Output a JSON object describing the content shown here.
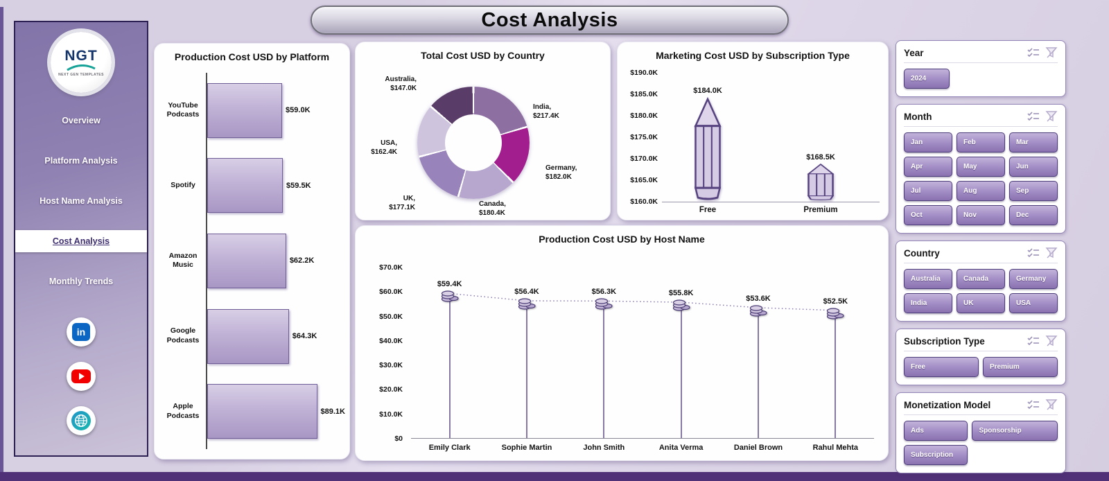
{
  "app": {
    "title": "Cost Analysis"
  },
  "sidebar": {
    "logo": {
      "text": "NGT",
      "subtext": "NEXT GEN TEMPLATES"
    },
    "items": [
      {
        "label": "Overview",
        "active": false
      },
      {
        "label": "Platform Analysis",
        "active": false
      },
      {
        "label": "Host Name Analysis",
        "active": false
      },
      {
        "label": "Cost Analysis",
        "active": true
      },
      {
        "label": "Monthly Trends",
        "active": false
      }
    ],
    "social": [
      {
        "name": "linkedin",
        "glyph": "in"
      },
      {
        "name": "youtube"
      },
      {
        "name": "website"
      }
    ]
  },
  "chart_data": [
    {
      "type": "bar",
      "orientation": "horizontal",
      "title": "Production Cost USD by Platform",
      "categories": [
        "YouTube Podcasts",
        "Spotify",
        "Amazon Music",
        "Google Podcasts",
        "Apple Podcasts"
      ],
      "values": [
        59.0,
        59.5,
        62.2,
        64.3,
        89.1
      ],
      "value_labels": [
        "$59.0K",
        "$59.5K",
        "$62.2K",
        "$64.3K",
        "$89.1K"
      ],
      "unit": "K USD",
      "bar_fill": "#b9a9d0",
      "bar_border": "#6d5c95"
    },
    {
      "type": "pie",
      "subtype": "donut",
      "title": "Total Cost USD by Country",
      "categories": [
        "India",
        "Germany",
        "Canada",
        "UK",
        "USA",
        "Australia"
      ],
      "values": [
        217.4,
        182.0,
        180.4,
        177.1,
        162.4,
        147.0
      ],
      "value_labels": [
        "$217.4K",
        "$182.0K",
        "$180.4K",
        "$177.1K",
        "$162.4K",
        "$147.0K"
      ],
      "slice_labels": [
        [
          "India,",
          "$217.4K"
        ],
        [
          "Germany,",
          "$182.0K"
        ],
        [
          "Canada,",
          "$180.4K"
        ],
        [
          "UK,",
          "$177.1K"
        ],
        [
          "USA,",
          "$162.4K"
        ],
        [
          "Australia,",
          "$147.0K"
        ]
      ],
      "colors": [
        "#8d6fa1",
        "#a21d8d",
        "#b7a7ce",
        "#9884ba",
        "#cfc4de",
        "#5a3c69"
      ]
    },
    {
      "type": "bar",
      "subtype": "pictogram",
      "title": "Marketing Cost USD by Subscription Type",
      "categories": [
        "Free",
        "Premium"
      ],
      "values": [
        184.0,
        168.5
      ],
      "value_labels": [
        "$184.0K",
        "$168.5K"
      ],
      "ylim": [
        160,
        190
      ],
      "yticks": [
        "$190.0K",
        "$185.0K",
        "$180.0K",
        "$175.0K",
        "$170.0K",
        "$165.0K",
        "$160.0K"
      ]
    },
    {
      "type": "line",
      "subtype": "lollipop",
      "title": "Production Cost USD by Host Name",
      "categories": [
        "Emily Clark",
        "Sophie Martin",
        "John Smith",
        "Anita Verma",
        "Daniel Brown",
        "Rahul Mehta"
      ],
      "values": [
        59.4,
        56.4,
        56.3,
        55.8,
        53.6,
        52.5
      ],
      "value_labels": [
        "$59.4K",
        "$56.4K",
        "$56.3K",
        "$55.8K",
        "$53.6K",
        "$52.5K"
      ],
      "ylim": [
        0,
        70
      ],
      "yticks": [
        "$70.0K",
        "$60.0K",
        "$50.0K",
        "$40.0K",
        "$30.0K",
        "$20.0K",
        "$10.0K",
        "$0"
      ]
    }
  ],
  "filters": {
    "header_icons": [
      "select-all-icon",
      "clear-filter-icon"
    ],
    "sections": [
      {
        "title": "Year",
        "options": [
          "2024"
        ]
      },
      {
        "title": "Month",
        "options": [
          "Jan",
          "Feb",
          "Mar",
          "Apr",
          "May",
          "Jun",
          "Jul",
          "Aug",
          "Sep",
          "Oct",
          "Nov",
          "Dec"
        ]
      },
      {
        "title": "Country",
        "options": [
          "Australia",
          "Canada",
          "Germany",
          "India",
          "UK",
          "USA"
        ]
      },
      {
        "title": "Subscription Type",
        "options": [
          "Free",
          "Premium"
        ]
      },
      {
        "title": "Monetization Model",
        "options": [
          "Ads",
          "Sponsorship",
          "Subscription"
        ]
      }
    ]
  },
  "colors": {
    "background": "#d9d2e3",
    "accent_dark": "#4a3a7c",
    "button_top": "#c2b3da",
    "button_bottom": "#8a72b0",
    "bottom_bar": "#503076",
    "linkedin_blue": "#0a66c2",
    "youtube_red": "#f20000"
  }
}
